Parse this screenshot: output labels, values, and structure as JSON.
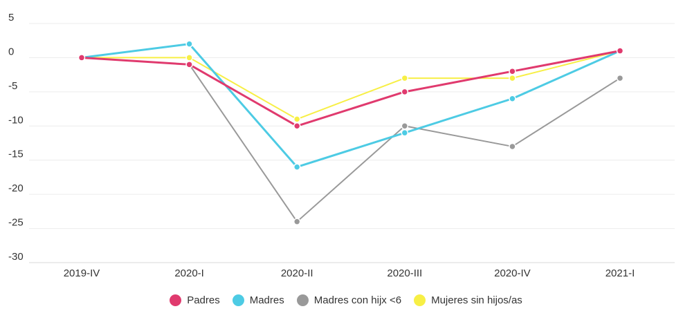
{
  "chart_data": {
    "type": "line",
    "title": "",
    "xlabel": "",
    "ylabel": "",
    "categories": [
      "2019-IV",
      "2020-I",
      "2020-II",
      "2020-III",
      "2020-IV",
      "2021-I"
    ],
    "ylim": [
      -30,
      5
    ],
    "yticks": [
      5,
      0,
      -5,
      -10,
      -15,
      -20,
      -25,
      -30
    ],
    "grid": true,
    "legend_position": "bottom",
    "series": [
      {
        "name": "Padres",
        "color": "#e03a6e",
        "values": [
          0,
          -1,
          -10,
          -5,
          -2,
          1
        ]
      },
      {
        "name": "Madres",
        "color": "#4dcbe4",
        "values": [
          0,
          2,
          -16,
          -11,
          -6,
          1
        ]
      },
      {
        "name": "Madres con hijx <6",
        "color": "#999999",
        "values": [
          null,
          -1,
          -24,
          -10,
          -13,
          -3
        ]
      },
      {
        "name": "Mujeres sin hijos/as",
        "color": "#f7ef45",
        "values": [
          0,
          0,
          -9,
          -3,
          -3,
          1
        ]
      }
    ]
  }
}
